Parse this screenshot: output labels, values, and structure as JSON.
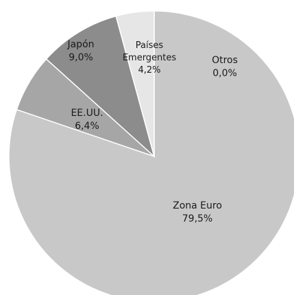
{
  "chart_data": {
    "type": "pie",
    "categories": [
      "Otros",
      "Zona Euro",
      "EE.UU.",
      "Japón",
      "Países Emergentes"
    ],
    "values": [
      0.0,
      79.5,
      6.4,
      9.0,
      4.2
    ],
    "value_labels": [
      "0,0%",
      "79,5%",
      "6,4%",
      "9,0%",
      "4,2%"
    ],
    "colors": [
      "#d9d9d9",
      "#c8c8c8",
      "#a6a6a6",
      "#8c8c8c",
      "#e6e6e6"
    ]
  }
}
